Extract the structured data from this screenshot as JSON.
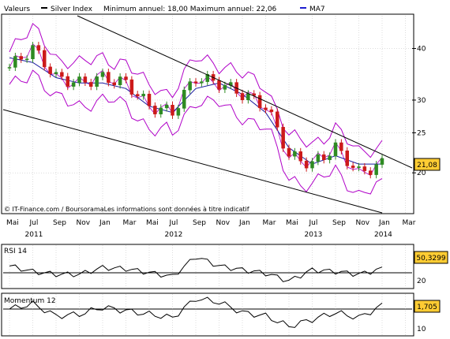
{
  "header": {
    "series_label": "Valeurs",
    "series_name": "Silver Index",
    "min_max": "Minimum annuel: 18,00 Maximum annuel: 22,06",
    "ma_label": "MA7"
  },
  "footer": {
    "source": "© IT-Finance.com / BoursoramaLes informations sont données à titre indicatif"
  },
  "colors": {
    "background": "#ffffff",
    "up_candle": "#2e8b22",
    "down_candle": "#cc1a1a",
    "bollinger": "#b000c8",
    "ma": "#1a1aa0",
    "trendline": "#000000",
    "badge": "#ffcc33",
    "ma_legend": "#1c1cd0"
  },
  "x_axis": {
    "months": [
      "Mai",
      "Jul",
      "Sep",
      "Nov",
      "Jan",
      "Mar",
      "Mai",
      "Jul",
      "Sep",
      "Nov",
      "Jan",
      "Mar",
      "Mai",
      "Jul",
      "Sep",
      "Nov",
      "Jan",
      "Mar"
    ],
    "years": [
      "2011",
      "2012",
      "2013",
      "2014"
    ]
  },
  "chart_data": [
    {
      "type": "line",
      "panel": "price",
      "title": "Silver Index",
      "unit_note": "monthly candlesticks with Bollinger bands and MA7",
      "y_scale": "log",
      "ylim": [
        16,
        48
      ],
      "yticks": [
        "40",
        "30",
        "25",
        "20"
      ],
      "last_value": "21,08",
      "x": [
        "2011-05",
        "2011-07",
        "2011-09",
        "2011-11",
        "2012-01",
        "2012-03",
        "2012-05",
        "2012-07",
        "2012-09",
        "2012-11",
        "2013-01",
        "2013-03",
        "2013-05",
        "2013-07",
        "2013-09",
        "2013-11",
        "2014-01"
      ],
      "series": [
        {
          "name": "Silver Index",
          "values": [
            36,
            40,
            34,
            33,
            34,
            33,
            29,
            28,
            34,
            33,
            31,
            29,
            22,
            21,
            23,
            20,
            21
          ]
        },
        {
          "name": "MA7",
          "values": [
            38,
            37,
            34,
            33,
            33,
            32,
            29,
            28,
            32,
            33,
            31,
            28,
            23,
            21,
            22,
            21,
            21
          ]
        }
      ],
      "annotations": [
        "descending trend channel"
      ]
    },
    {
      "type": "line",
      "panel": "rsi",
      "title": "RSI 14",
      "yticks": [
        "20"
      ],
      "last_value": "50,3299",
      "x": [
        "2011-05",
        "2011-07",
        "2011-09",
        "2011-11",
        "2012-01",
        "2012-03",
        "2012-05",
        "2012-07",
        "2012-09",
        "2012-11",
        "2013-01",
        "2013-03",
        "2013-05",
        "2013-07",
        "2013-09",
        "2013-11",
        "2014-01"
      ],
      "values": [
        55,
        45,
        40,
        40,
        52,
        50,
        43,
        36,
        72,
        55,
        48,
        42,
        28,
        48,
        45,
        40,
        50
      ]
    },
    {
      "type": "line",
      "panel": "momentum",
      "title": "Momentum 12",
      "yticks": [
        "10"
      ],
      "last_value": "1,705",
      "x": [
        "2011-05",
        "2011-07",
        "2011-09",
        "2011-11",
        "2012-01",
        "2012-03",
        "2012-05",
        "2012-07",
        "2012-09",
        "2012-11",
        "2013-01",
        "2013-03",
        "2013-05",
        "2013-07",
        "2013-09",
        "2013-11",
        "2014-01"
      ],
      "values": [
        0,
        3,
        -4,
        -3,
        1,
        -1,
        -3,
        -5,
        6,
        4,
        -2,
        -4,
        -10,
        -6,
        -2,
        -5,
        2
      ]
    }
  ]
}
